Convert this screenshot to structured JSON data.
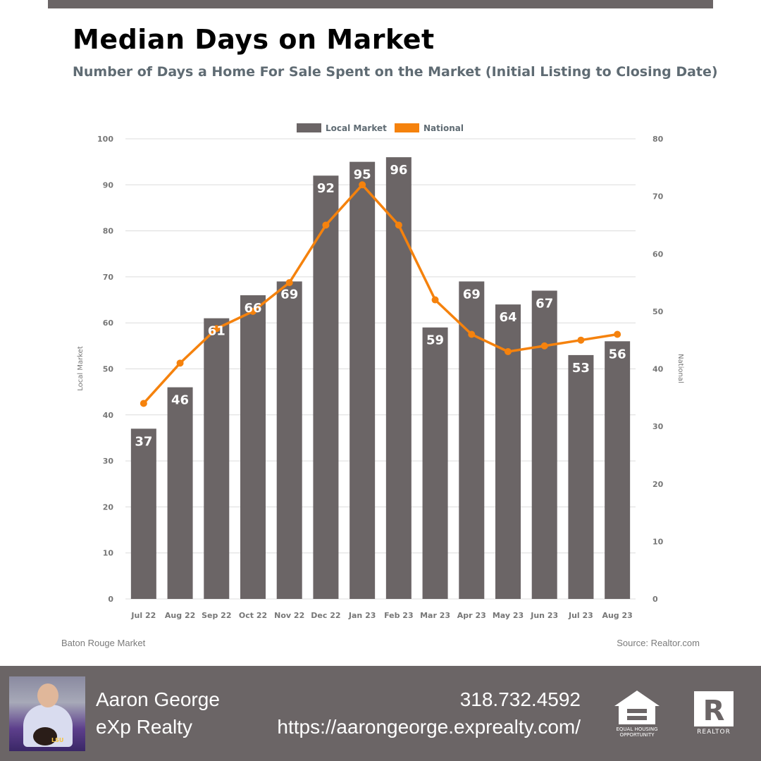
{
  "header": {
    "title": "Median Days on Market",
    "subtitle": "Number of Days a Home For Sale Spent on the Market (Initial Listing to Closing Date)"
  },
  "chart_data": {
    "type": "bar",
    "categories": [
      "Jul 22",
      "Aug 22",
      "Sep 22",
      "Oct 22",
      "Nov 22",
      "Dec 22",
      "Jan 23",
      "Feb 23",
      "Mar 23",
      "Apr 23",
      "May 23",
      "Jun 23",
      "Jul 23",
      "Aug 23"
    ],
    "series": [
      {
        "name": "Local Market",
        "type": "bar",
        "axis": "left",
        "color": "#6b6566",
        "values": [
          37,
          46,
          61,
          66,
          69,
          92,
          95,
          96,
          59,
          69,
          64,
          67,
          53,
          56
        ]
      },
      {
        "name": "National",
        "type": "line",
        "axis": "right",
        "color": "#f5820d",
        "values": [
          34,
          41,
          47,
          50,
          55,
          65,
          72,
          65,
          52,
          46,
          43,
          44,
          45,
          46
        ]
      }
    ],
    "ylabel": "Local Market",
    "y2label": "National",
    "ylim": [
      0,
      100
    ],
    "y2lim": [
      0,
      80
    ],
    "yticks": [
      0,
      10,
      20,
      30,
      40,
      50,
      60,
      70,
      80,
      90,
      100
    ],
    "y2ticks": [
      0,
      10,
      20,
      30,
      40,
      50,
      60,
      70,
      80
    ],
    "legend_position": "top-center",
    "grid": true
  },
  "footer": {
    "market": "Baton Rouge Market",
    "source": "Source: Realtor.com"
  },
  "agent": {
    "name": "Aaron George",
    "company": "eXp Realty",
    "phone": "318.732.4592",
    "website": "https://aarongeorge.exprealty.com/",
    "photo_caption": "LSU"
  },
  "badges": {
    "equal_housing_line1": "EQUAL HOUSING",
    "equal_housing_line2": "OPPORTUNITY",
    "realtor_label": "REALTOR",
    "realtor_letter": "R"
  }
}
